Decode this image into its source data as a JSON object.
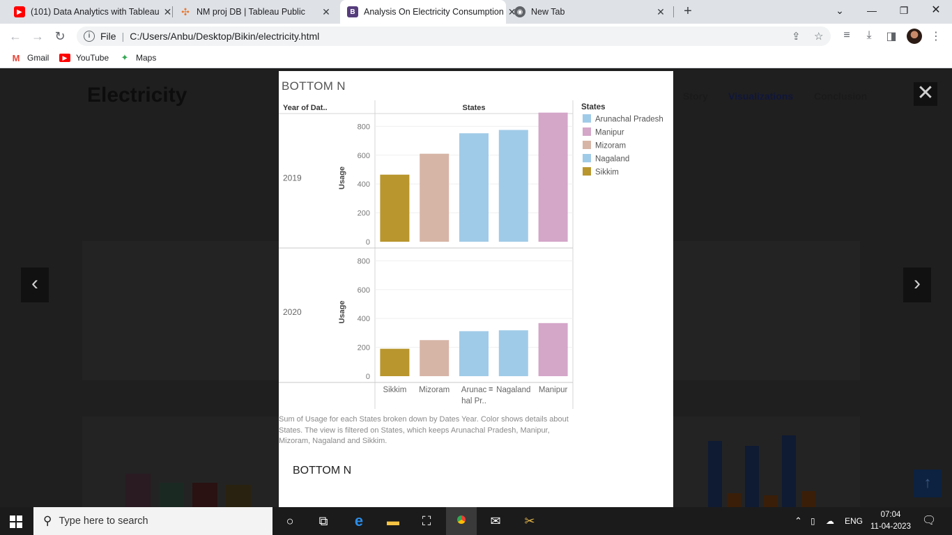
{
  "browser": {
    "tabs": [
      {
        "title": "(101) Data Analytics with Tableau",
        "icon": "youtube-icon",
        "active": false
      },
      {
        "title": "NM proj DB | Tableau Public",
        "icon": "tableau-icon",
        "active": false
      },
      {
        "title": "Analysis On Electricity Consumption",
        "icon": "bootstrap-icon",
        "active": true
      },
      {
        "title": "New Tab",
        "icon": "chrome-icon",
        "active": false
      }
    ],
    "address": {
      "scheme": "File",
      "url": "C:/Users/Anbu/Desktop/Bikin/electricity.html"
    },
    "bookmarks": [
      {
        "label": "Gmail",
        "icon": "gmail-icon"
      },
      {
        "label": "YouTube",
        "icon": "youtube-icon"
      },
      {
        "label": "Maps",
        "icon": "maps-icon"
      }
    ]
  },
  "page": {
    "title": "Electricity",
    "nav": [
      "Story",
      "Visualizations",
      "Conclusion"
    ]
  },
  "viz": {
    "title": "BOTTOM N",
    "header_row": "Year of Dat..",
    "header_col": "States",
    "caption": "Sum of Usage for each States broken down by Dates Year.  Color shows details about States. The view is filtered on States, which keeps Arunachal Pradesh, Manipur, Mizoram, Nagaland and Sikkim.",
    "bottom_label": "BOTTOM N"
  },
  "chart_data": {
    "type": "bar",
    "title": "BOTTOM N",
    "row_header": "Year of Dat..",
    "column_header": "States",
    "ylabel": "Usage",
    "ylim": [
      0,
      900
    ],
    "yticks": [
      0,
      200,
      400,
      600,
      800
    ],
    "categories": [
      "Sikkim",
      "Mizoram",
      "Arunachal Pradesh",
      "Nagaland",
      "Manipur"
    ],
    "category_tick_labels": [
      "Sikkim",
      "Mizoram",
      "Arunac hal Pr..",
      "Nagaland",
      "Manipur"
    ],
    "series": [
      {
        "year": "2019",
        "values": [
          465,
          610,
          752,
          775,
          895
        ]
      },
      {
        "year": "2020",
        "values": [
          190,
          250,
          312,
          318,
          368
        ]
      }
    ],
    "legend": {
      "title": "States",
      "position": "right",
      "entries": [
        {
          "label": "Arunachal Pradesh",
          "color": "#a0cbe8"
        },
        {
          "label": "Manipur",
          "color": "#d4a6c8"
        },
        {
          "label": "Mizoram",
          "color": "#d7b5a6"
        },
        {
          "label": "Nagaland",
          "color": "#a0cbe8"
        },
        {
          "label": "Sikkim",
          "color": "#b9962e"
        }
      ]
    },
    "grid": true
  },
  "taskbar": {
    "search_placeholder": "Type here to search",
    "language": "ENG",
    "time": "07:04",
    "date": "11-04-2023"
  }
}
